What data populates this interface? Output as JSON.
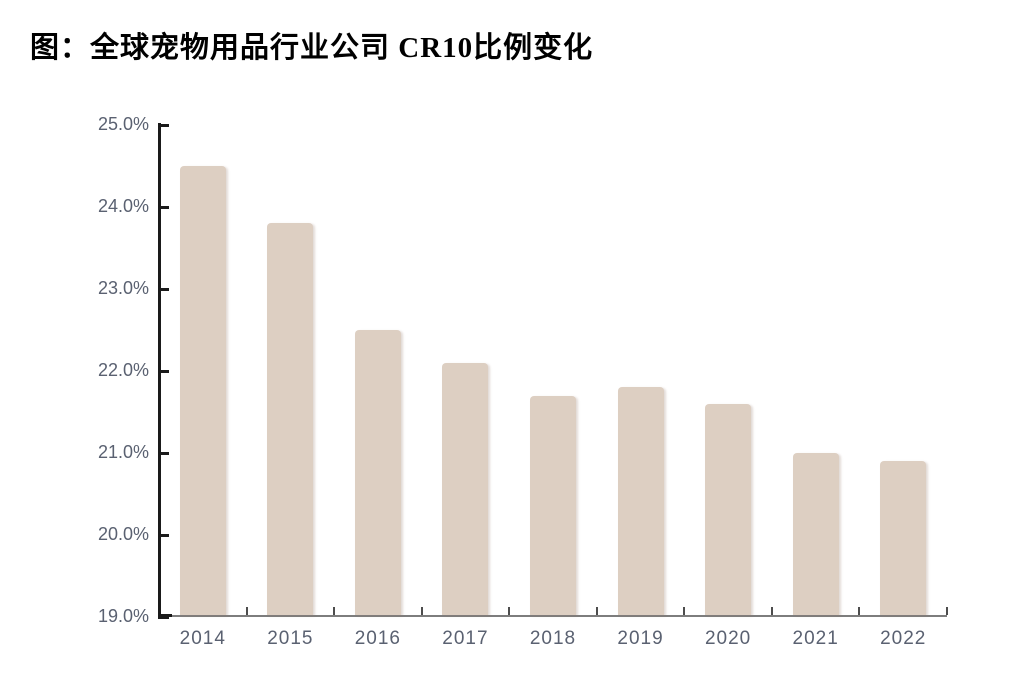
{
  "header": {
    "title": "图：全球宠物用品行业公司 CR10比例变化"
  },
  "chart_data": {
    "type": "bar",
    "title": "图：全球宠物用品行业公司 CR10比例变化",
    "categories": [
      "2014",
      "2015",
      "2016",
      "2017",
      "2018",
      "2019",
      "2020",
      "2021",
      "2022"
    ],
    "values": [
      24.5,
      23.8,
      22.5,
      22.1,
      21.7,
      21.8,
      21.6,
      21.0,
      20.9
    ],
    "xlabel": "",
    "ylabel": "",
    "ylim": [
      19.0,
      25.0
    ],
    "y_tick_step": 1.0,
    "y_tick_labels": [
      "25.0%",
      "24.0%",
      "23.0%",
      "22.0%",
      "21.0%",
      "20.0%",
      "19.0%"
    ],
    "grid": false,
    "legend": false,
    "colors": {
      "bar_fill": "#ddcfc2",
      "axis_label": "#5a6171",
      "y_axis_line": "#1a1a1a",
      "x_axis_line": "#7d7d7d",
      "title": "#000000"
    }
  }
}
